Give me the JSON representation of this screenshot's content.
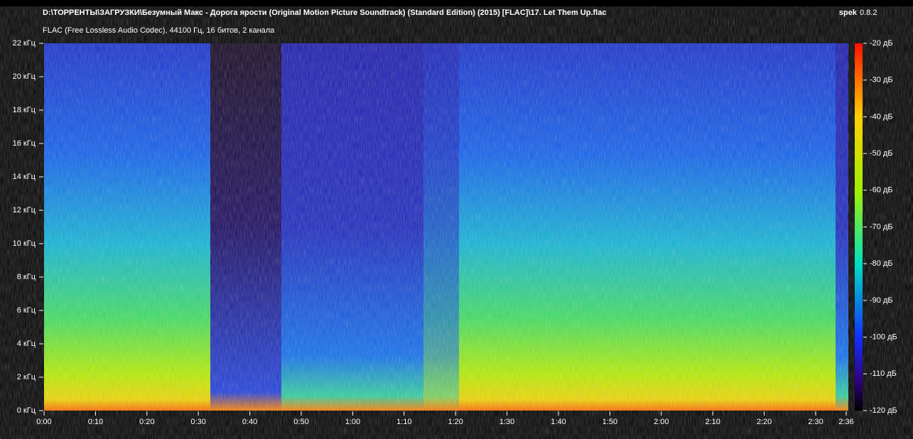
{
  "header": {
    "title": "D:\\ТОРРЕНТЫ\\ЗАГРУЗКИ\\Безумный Макс - Дорога ярости (Original Motion Picture Soundtrack) (Standard Edition) (2015) [FLAC]\\17. Let Them Up.flac",
    "subtitle": "FLAC (Free Lossless Audio Codec), 44100 Гц, 16 битов, 2 канала",
    "app": "spek",
    "version": "0.8.2"
  },
  "frequency_axis": {
    "labels": [
      "0 кГц",
      "2 кГц",
      "4 кГц",
      "6 кГц",
      "8 кГц",
      "10 кГц",
      "12 кГц",
      "14 кГц",
      "16 кГц",
      "18 кГц",
      "20 кГц",
      "22 кГц"
    ]
  },
  "time_axis": {
    "labels": [
      "0:00",
      "0:10",
      "0:20",
      "0:30",
      "0:40",
      "0:50",
      "1:00",
      "1:10",
      "1:20",
      "1:30",
      "1:40",
      "1:50",
      "2:00",
      "2:10",
      "2:20",
      "2:30",
      "2:36"
    ]
  },
  "color_scale": {
    "labels": [
      "-20 дБ",
      "-30 дБ",
      "-40 дБ",
      "-50 дБ",
      "-60 дБ",
      "-70 дБ",
      "-80 дБ",
      "-90 дБ",
      "-100 дБ",
      "-110 дБ",
      "-120 дБ"
    ]
  }
}
